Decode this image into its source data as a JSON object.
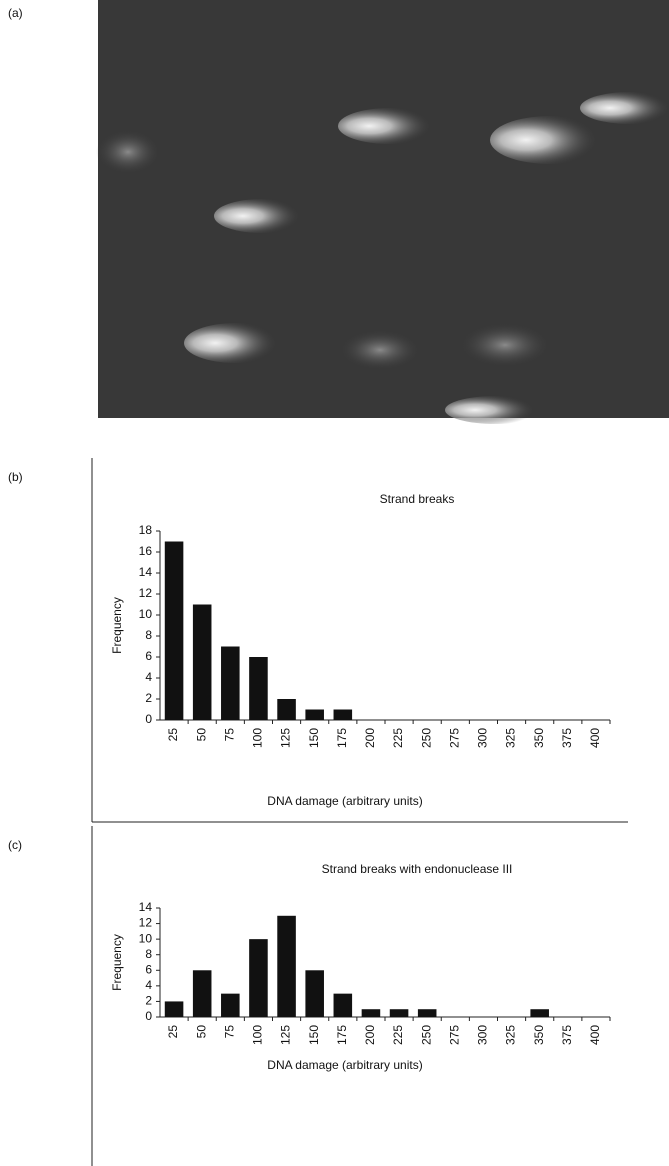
{
  "figure": {
    "panel_labels": [
      "(a)",
      "(b)",
      "(c)"
    ]
  },
  "chart_data": [
    {
      "type": "bar",
      "title": "Strand breaks",
      "x_label": "DNA damage (arbitrary units)",
      "y_label": "Frequency",
      "categories": [
        "25",
        "50",
        "75",
        "100",
        "125",
        "150",
        "175",
        "200",
        "225",
        "250",
        "275",
        "300",
        "325",
        "350",
        "375",
        "400"
      ],
      "values": [
        17,
        11,
        7,
        6,
        2,
        1,
        1,
        0,
        0,
        0,
        0,
        0,
        0,
        0,
        0,
        0
      ],
      "color": "#111111",
      "ylim": [
        0,
        18
      ],
      "yticks": [
        0,
        2,
        4,
        6,
        8,
        10,
        12,
        14,
        16,
        18
      ],
      "grid": false
    },
    {
      "type": "bar",
      "title": "Strand breaks with endonuclease III",
      "x_label": "DNA damage (arbitrary units)",
      "y_label": "Frequency",
      "categories": [
        "25",
        "50",
        "75",
        "100",
        "125",
        "150",
        "175",
        "200",
        "225",
        "250",
        "275",
        "300",
        "325",
        "350",
        "375",
        "400"
      ],
      "values": [
        2,
        6,
        3,
        10,
        13,
        6,
        3,
        1,
        1,
        1,
        0,
        0,
        0,
        1,
        0,
        0
      ],
      "color": "#111111",
      "ylim": [
        0,
        14
      ],
      "yticks": [
        0,
        2,
        4,
        6,
        8,
        10,
        12,
        14
      ],
      "grid": false
    }
  ]
}
